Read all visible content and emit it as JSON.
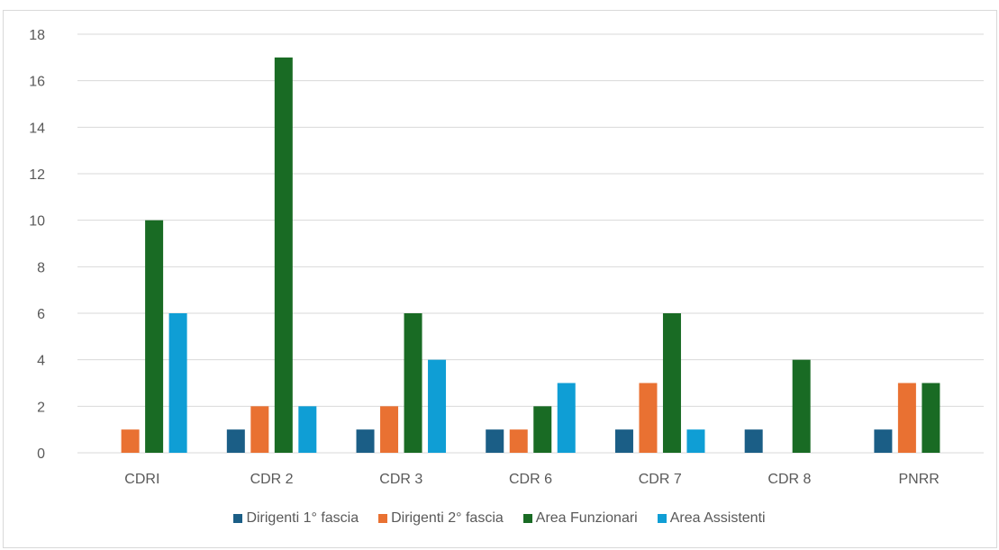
{
  "title": "",
  "chart_data": {
    "type": "bar",
    "categories": [
      "CDRI",
      "CDR 2",
      "CDR 3",
      "CDR 6",
      "CDR 7",
      "CDR 8",
      "PNRR"
    ],
    "series": [
      {
        "name": "Dirigenti 1° fascia",
        "color": "#1b5e86",
        "values": [
          0,
          1,
          1,
          1,
          1,
          1,
          1
        ]
      },
      {
        "name": "Dirigenti 2° fascia",
        "color": "#e97132",
        "values": [
          1,
          2,
          2,
          1,
          3,
          0,
          3
        ]
      },
      {
        "name": "Area Funzionari",
        "color": "#196b24",
        "values": [
          10,
          17,
          6,
          2,
          6,
          4,
          3
        ]
      },
      {
        "name": "Area Assistenti",
        "color": "#0f9ed5",
        "values": [
          6,
          2,
          4,
          3,
          1,
          0,
          0
        ]
      }
    ],
    "ylim": [
      0,
      18
    ],
    "yticks": [
      0,
      2,
      4,
      6,
      8,
      10,
      12,
      14,
      16,
      18
    ],
    "grid": true,
    "legend_position": "bottom",
    "xlabel": "",
    "ylabel": ""
  }
}
